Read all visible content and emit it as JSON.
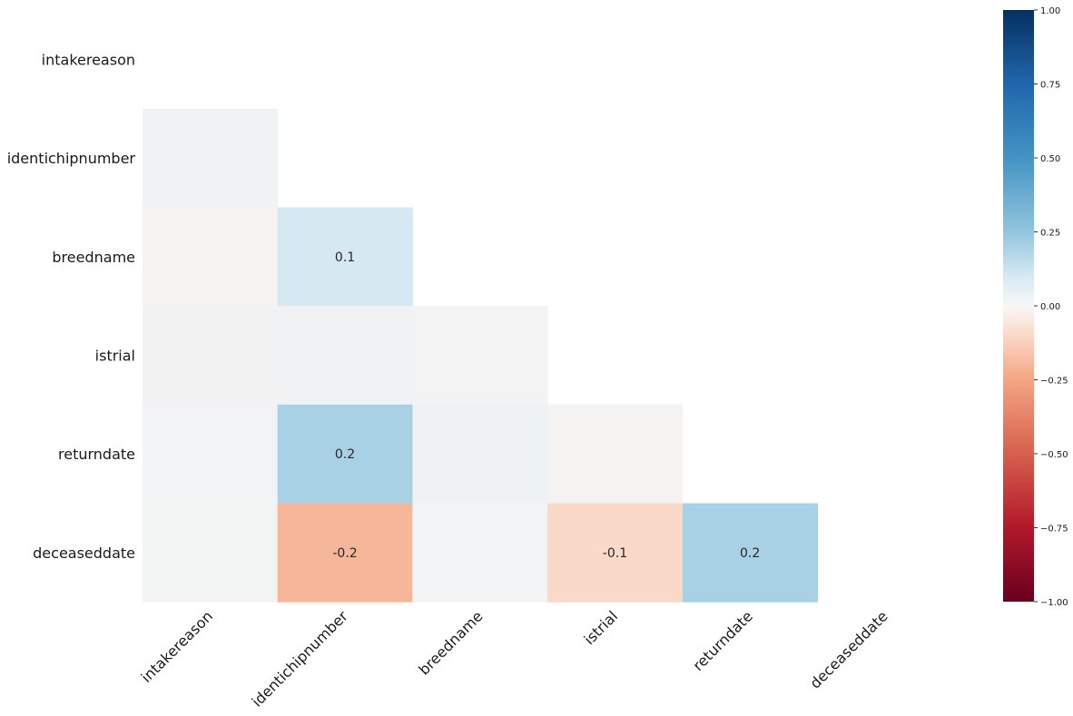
{
  "chart_data": {
    "type": "heatmap",
    "title": "",
    "xlabel": "",
    "ylabel": "",
    "variables": [
      "intakereason",
      "identichipnumber",
      "breedname",
      "istrial",
      "returndate",
      "deceaseddate"
    ],
    "lower_triangle_values": [
      [],
      [
        0.0
      ],
      [
        0.0,
        0.1
      ],
      [
        0.0,
        0.0,
        0.0
      ],
      [
        0.0,
        0.2,
        0.0,
        0.0
      ],
      [
        0.0,
        -0.2,
        0.0,
        -0.1,
        0.2
      ]
    ],
    "cell_labels": [
      [],
      [
        ""
      ],
      [
        "",
        "0.1"
      ],
      [
        "",
        "",
        ""
      ],
      [
        "",
        "0.2",
        "",
        ""
      ],
      [
        "",
        "-0.2",
        "",
        "-0.1",
        "0.2"
      ]
    ],
    "colorbar": {
      "range": [
        -1.0,
        1.0
      ],
      "ticks": [
        "1.00",
        "0.75",
        "0.50",
        "0.25",
        "0.00",
        "−0.25",
        "−0.50",
        "−0.75",
        "−1.00"
      ],
      "tick_values": [
        1.0,
        0.75,
        0.5,
        0.25,
        0.0,
        -0.25,
        -0.5,
        -0.75,
        -1.0
      ],
      "colormap": "RdBu",
      "low_color": "#67001f",
      "high_color": "#053061"
    },
    "grid": false,
    "legend": "colorbar right"
  }
}
